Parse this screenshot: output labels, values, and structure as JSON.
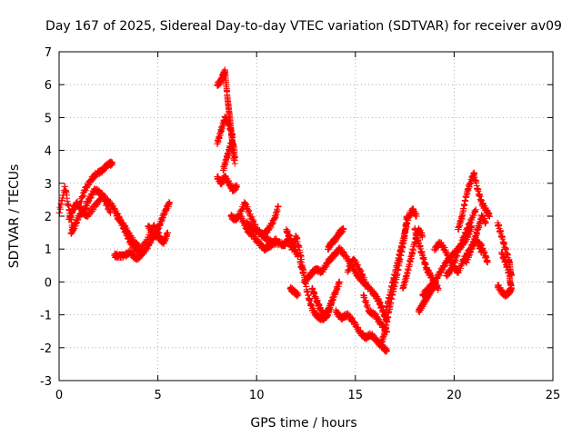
{
  "chart_data": {
    "type": "scatter",
    "title": "Day 167 of 2025, Sidereal Day-to-day VTEC variation (SDTVAR) for receiver av09",
    "xlabel": "GPS time / hours",
    "ylabel": "SDTVAR / TECUs",
    "xlim": [
      0,
      25
    ],
    "ylim": [
      -3,
      7
    ],
    "xticks": [
      "0",
      "5",
      "10",
      "15",
      "20",
      "25"
    ],
    "yticks": [
      "-3",
      "-2",
      "-1",
      "0",
      "1",
      "2",
      "3",
      "4",
      "5",
      "6",
      "7"
    ],
    "grid": true,
    "marker": "+",
    "series_color": "#ff0000",
    "series": [
      {
        "name": "SDTVAR",
        "segments": [
          {
            "x": [
              0.0,
              0.3
            ],
            "y": [
              2.1,
              2.9
            ]
          },
          {
            "x": [
              0.3,
              0.5,
              0.7
            ],
            "y": [
              2.9,
              2.2,
              1.6
            ]
          },
          {
            "x": [
              0.5,
              0.7,
              0.9,
              1.1,
              1.4,
              1.8,
              2.2,
              2.6
            ],
            "y": [
              1.9,
              2.2,
              2.4,
              2.2,
              2.0,
              2.3,
              2.6,
              2.1
            ]
          },
          {
            "x": [
              0.6,
              0.8,
              1.0,
              1.3,
              1.5,
              1.8,
              2.1,
              2.4,
              2.7,
              3.0,
              3.3,
              3.6,
              4.0,
              4.4,
              4.8,
              5.1
            ],
            "y": [
              1.5,
              1.7,
              2.0,
              2.2,
              2.5,
              2.8,
              2.7,
              2.5,
              2.3,
              2.0,
              1.6,
              1.2,
              0.9,
              1.2,
              1.7,
              1.4
            ]
          },
          {
            "x": [
              1.0,
              1.3,
              1.6,
              1.9,
              2.2,
              2.5,
              2.7
            ],
            "y": [
              2.3,
              2.8,
              3.1,
              3.3,
              3.4,
              3.6,
              3.6
            ]
          },
          {
            "x": [
              2.8,
              3.0,
              3.3,
              3.6,
              3.9,
              4.1,
              4.4,
              4.7,
              5.0,
              5.2,
              5.4,
              5.6
            ],
            "y": [
              0.8,
              0.8,
              0.8,
              0.9,
              0.7,
              0.8,
              1.0,
              1.3,
              1.6,
              1.9,
              2.2,
              2.4
            ]
          },
          {
            "x": [
              2.9,
              3.2,
              3.5,
              3.8,
              4.0
            ],
            "y": [
              2.0,
              1.8,
              1.5,
              1.2,
              1.1
            ]
          },
          {
            "x": [
              4.5,
              4.8,
              5.1,
              5.3,
              5.5
            ],
            "y": [
              1.7,
              1.5,
              1.3,
              1.2,
              1.5
            ]
          },
          {
            "x": [
              8.0,
              8.2,
              8.3,
              8.4,
              8.5,
              8.6,
              8.7,
              8.8,
              8.9
            ],
            "y": [
              6.0,
              6.1,
              6.3,
              6.4,
              5.8,
              5.2,
              4.6,
              4.2,
              3.8
            ]
          },
          {
            "x": [
              8.0,
              8.2,
              8.4,
              8.6,
              8.8
            ],
            "y": [
              4.2,
              4.6,
              5.0,
              4.8,
              4.4
            ]
          },
          {
            "x": [
              8.0,
              8.2,
              8.4,
              8.6,
              8.8,
              9.0
            ],
            "y": [
              3.2,
              3.0,
              3.2,
              3.0,
              2.8,
              2.9
            ]
          },
          {
            "x": [
              8.3,
              8.5,
              8.7,
              8.9
            ],
            "y": [
              3.4,
              3.8,
              4.2,
              3.6
            ]
          },
          {
            "x": [
              8.7,
              8.9,
              9.1,
              9.4,
              9.7,
              10.0,
              10.3,
              10.6,
              10.9,
              11.1
            ],
            "y": [
              2.0,
              1.9,
              2.0,
              2.4,
              2.0,
              1.6,
              1.4,
              1.6,
              1.9,
              2.3
            ]
          },
          {
            "x": [
              9.2,
              9.5,
              9.8,
              10.1,
              10.4,
              10.7,
              11.0
            ],
            "y": [
              2.0,
              1.6,
              1.4,
              1.2,
              1.0,
              1.1,
              1.3
            ]
          },
          {
            "x": [
              9.5,
              9.8,
              10.2,
              10.5,
              10.8,
              11.1,
              11.4,
              11.6,
              11.8,
              12.0,
              12.2,
              12.4
            ],
            "y": [
              1.8,
              1.6,
              1.5,
              1.3,
              1.2,
              1.2,
              1.1,
              1.3,
              1.0,
              1.4,
              0.9,
              0.2
            ]
          },
          {
            "x": [
              11.5,
              11.7,
              11.9,
              12.1
            ],
            "y": [
              1.6,
              1.3,
              1.0,
              0.8
            ]
          },
          {
            "x": [
              11.7,
              11.9,
              12.1
            ],
            "y": [
              -0.2,
              -0.3,
              -0.4
            ]
          },
          {
            "x": [
              12.2,
              12.4,
              12.6,
              12.8,
              13.0,
              13.2,
              13.4,
              13.6,
              13.8
            ],
            "y": [
              0.6,
              0.2,
              -0.4,
              -0.8,
              -1.0,
              -1.1,
              -1.1,
              -1.0,
              -0.6
            ]
          },
          {
            "x": [
              12.4,
              12.7,
              13.0,
              13.3,
              13.6,
              13.9,
              14.2,
              14.5,
              14.8,
              15.1,
              15.4,
              15.7,
              16.0,
              16.2,
              16.4,
              16.6
            ],
            "y": [
              0.0,
              0.2,
              0.4,
              0.3,
              0.6,
              0.8,
              1.0,
              0.8,
              0.5,
              0.2,
              0.0,
              -0.2,
              -0.4,
              -0.6,
              -0.9,
              -1.2
            ]
          },
          {
            "x": [
              12.8,
              13.0,
              13.2,
              13.4,
              13.6,
              13.8,
              14.0,
              14.2
            ],
            "y": [
              -0.2,
              -0.5,
              -0.8,
              -1.0,
              -0.9,
              -0.6,
              -0.3,
              0.0
            ]
          },
          {
            "x": [
              13.6,
              13.8,
              14.0,
              14.2,
              14.4
            ],
            "y": [
              1.0,
              1.2,
              1.3,
              1.5,
              1.6
            ]
          },
          {
            "x": [
              14.0,
              14.3,
              14.6,
              14.9,
              15.2,
              15.5,
              15.8,
              16.1,
              16.4,
              16.6
            ],
            "y": [
              -0.9,
              -1.1,
              -1.0,
              -1.2,
              -1.5,
              -1.7,
              -1.6,
              -1.8,
              -2.0,
              -2.1
            ]
          },
          {
            "x": [
              14.6,
              14.9,
              15.2,
              15.5
            ],
            "y": [
              0.3,
              0.7,
              0.4,
              0.0
            ]
          },
          {
            "x": [
              15.4,
              15.7,
              16.0,
              16.3,
              16.6
            ],
            "y": [
              -0.4,
              -0.9,
              -1.0,
              -1.3,
              -1.5
            ]
          },
          {
            "x": [
              16.3,
              16.5,
              16.7,
              16.9,
              17.1,
              17.3,
              17.5,
              17.6
            ],
            "y": [
              -1.9,
              -1.5,
              -0.9,
              -0.3,
              0.2,
              0.8,
              1.4,
              2.0
            ]
          },
          {
            "x": [
              16.5,
              16.7,
              16.9,
              17.1,
              17.3,
              17.5,
              17.7,
              17.9,
              18.1
            ],
            "y": [
              -1.0,
              -0.5,
              0.0,
              0.5,
              1.0,
              1.5,
              2.0,
              2.2,
              2.0
            ]
          },
          {
            "x": [
              17.4,
              17.6,
              17.8,
              18.0,
              18.2,
              18.4
            ],
            "y": [
              -0.2,
              0.2,
              0.7,
              1.2,
              1.6,
              1.4
            ]
          },
          {
            "x": [
              18.0,
              18.2,
              18.4,
              18.6,
              18.8,
              19.0,
              19.2
            ],
            "y": [
              1.6,
              1.2,
              0.8,
              0.4,
              0.2,
              0.0,
              -0.2
            ]
          },
          {
            "x": [
              18.2,
              18.4,
              18.6,
              18.8,
              19.0
            ],
            "y": [
              -0.9,
              -0.7,
              -0.5,
              -0.3,
              -0.1
            ]
          },
          {
            "x": [
              18.4,
              18.7,
              19.0,
              19.3,
              19.6,
              19.9,
              20.2,
              20.5,
              20.7,
              20.9
            ],
            "y": [
              -0.4,
              -0.2,
              0.0,
              0.3,
              0.6,
              0.8,
              1.0,
              1.2,
              1.4,
              1.7
            ]
          },
          {
            "x": [
              19.0,
              19.3,
              19.6,
              19.9,
              20.2,
              20.5,
              20.8,
              21.1,
              21.4
            ],
            "y": [
              1.0,
              1.2,
              0.9,
              0.5,
              0.3,
              0.7,
              1.0,
              1.3,
              0.9
            ]
          },
          {
            "x": [
              19.6,
              19.9,
              20.2,
              20.5,
              20.8,
              21.1
            ],
            "y": [
              0.2,
              0.4,
              0.9,
              1.4,
              1.8,
              2.2
            ]
          },
          {
            "x": [
              20.2,
              20.4,
              20.6,
              20.8,
              21.0,
              21.2,
              21.4,
              21.6,
              21.8
            ],
            "y": [
              1.6,
              2.0,
              2.6,
              3.0,
              3.3,
              2.8,
              2.4,
              2.2,
              2.0
            ]
          },
          {
            "x": [
              20.6,
              20.8,
              21.0,
              21.2,
              21.4,
              21.6
            ],
            "y": [
              0.6,
              0.9,
              1.2,
              1.6,
              2.0,
              1.8
            ]
          },
          {
            "x": [
              21.3,
              21.5,
              21.7
            ],
            "y": [
              1.2,
              0.9,
              0.6
            ]
          },
          {
            "x": [
              22.2,
              22.4,
              22.6,
              22.8,
              22.9
            ],
            "y": [
              1.8,
              1.4,
              1.0,
              0.6,
              0.2
            ]
          },
          {
            "x": [
              22.2,
              22.4,
              22.6,
              22.8,
              22.9
            ],
            "y": [
              -0.1,
              -0.3,
              -0.4,
              -0.3,
              -0.2
            ]
          },
          {
            "x": [
              22.4,
              22.6,
              22.8,
              22.9
            ],
            "y": [
              0.9,
              0.6,
              0.2,
              -0.2
            ]
          }
        ]
      }
    ]
  }
}
